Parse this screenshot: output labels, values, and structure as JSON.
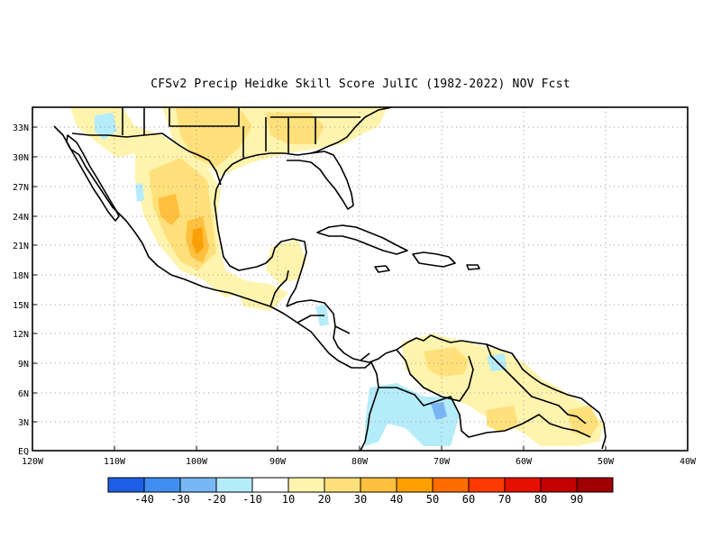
{
  "title": "CFSv2 Precip Heidke Skill Score JulIC (1982-2022) NOV Fcst",
  "axes": {
    "lat_labels": [
      "33N",
      "30N",
      "27N",
      "24N",
      "21N",
      "18N",
      "15N",
      "12N",
      "9N",
      "6N",
      "3N",
      "EQ"
    ],
    "lat_values": [
      33,
      30,
      27,
      24,
      21,
      18,
      15,
      12,
      9,
      6,
      3,
      0
    ],
    "lon_labels": [
      "120W",
      "110W",
      "100W",
      "90W",
      "80W",
      "70W",
      "60W",
      "50W",
      "40W"
    ],
    "lon_values": [
      -120,
      -110,
      -100,
      -90,
      -80,
      -70,
      -60,
      -50,
      -40
    ],
    "lon_range": [
      -120,
      -40
    ],
    "lat_range": [
      0,
      34.5
    ],
    "grid": "dotted"
  },
  "colorbar": {
    "colors": [
      "#1f5fe6",
      "#3f8ef2",
      "#78b6f6",
      "#b4ecfa",
      "#ffffff",
      "#fff4ae",
      "#ffe07a",
      "#ffc03e",
      "#ffa000",
      "#ff6c00",
      "#ff3a00",
      "#e61000",
      "#c40000",
      "#a00000"
    ],
    "labels": [
      "-40",
      "-30",
      "-20",
      "-10",
      "10",
      "20",
      "30",
      "40",
      "50",
      "60",
      "70",
      "80",
      "90"
    ]
  },
  "chart_data": {
    "type": "heatmap",
    "title": "CFSv2 Precip Heidke Skill Score JulIC (1982-2022) NOV Fcst",
    "region": {
      "lon": [
        -120,
        -40
      ],
      "lat": [
        0,
        34.5
      ]
    },
    "value_bins": [
      -40,
      -30,
      -20,
      -10,
      10,
      20,
      30,
      40,
      50,
      60,
      70,
      80,
      90
    ],
    "cells": [
      {
        "lon": -107,
        "lat": 32,
        "value": 15
      },
      {
        "lon": -101,
        "lat": 32,
        "value": 25
      },
      {
        "lon": -96,
        "lat": 32,
        "value": 20
      },
      {
        "lon": -86,
        "lat": 32.5,
        "value": 20
      },
      {
        "lon": -81,
        "lat": 33,
        "value": 15
      },
      {
        "lon": -104,
        "lat": 27,
        "value": 25
      },
      {
        "lon": -101,
        "lat": 24,
        "value": 30
      },
      {
        "lon": -100,
        "lat": 21,
        "value": 45
      },
      {
        "lon": -98,
        "lat": 19,
        "value": 25
      },
      {
        "lon": -89,
        "lat": 19,
        "value": 15
      },
      {
        "lon": -73,
        "lat": 9,
        "value": 30
      },
      {
        "lon": -70,
        "lat": 4,
        "value": -30
      },
      {
        "lon": -74,
        "lat": 3,
        "value": -15
      },
      {
        "lon": -63,
        "lat": 5,
        "value": 15
      },
      {
        "lon": -54,
        "lat": 4,
        "value": 25
      },
      {
        "lon": -112,
        "lat": 33,
        "value": -15
      },
      {
        "lon": -83,
        "lat": 15,
        "value": -15
      }
    ]
  }
}
